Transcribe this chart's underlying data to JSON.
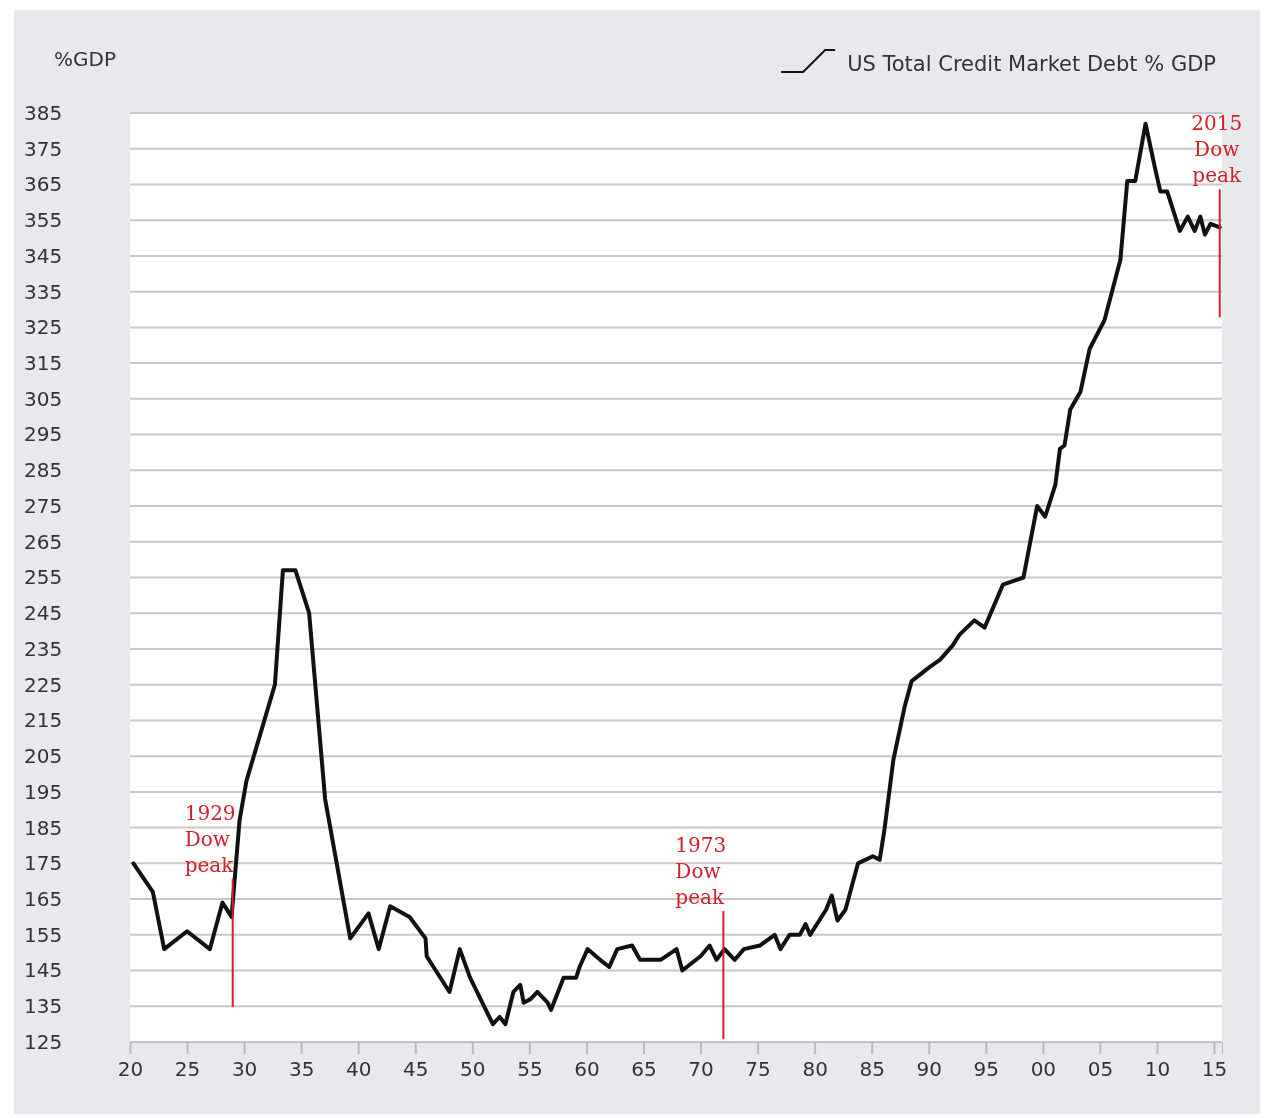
{
  "chart_data": {
    "type": "line",
    "ylabel": "%GDP",
    "legend": "top right",
    "grid": "y",
    "line_style": "solid",
    "marker": "none",
    "xlim": [
      1920,
      2015.7
    ],
    "ylim": [
      125,
      385
    ],
    "xticks": [
      {
        "value": 1920,
        "label": "20"
      },
      {
        "value": 1925,
        "label": "25"
      },
      {
        "value": 1930,
        "label": "30"
      },
      {
        "value": 1935,
        "label": "35"
      },
      {
        "value": 1940,
        "label": "40"
      },
      {
        "value": 1945,
        "label": "45"
      },
      {
        "value": 1950,
        "label": "50"
      },
      {
        "value": 1955,
        "label": "55"
      },
      {
        "value": 1960,
        "label": "60"
      },
      {
        "value": 1965,
        "label": "65"
      },
      {
        "value": 1970,
        "label": "70"
      },
      {
        "value": 1975,
        "label": "75"
      },
      {
        "value": 1980,
        "label": "80"
      },
      {
        "value": 1985,
        "label": "85"
      },
      {
        "value": 1990,
        "label": "90"
      },
      {
        "value": 1995,
        "label": "95"
      },
      {
        "value": 2000,
        "label": "00"
      },
      {
        "value": 2005,
        "label": "05"
      },
      {
        "value": 2010,
        "label": "10"
      },
      {
        "value": 2015,
        "label": "15"
      }
    ],
    "yticks": [
      125,
      135,
      145,
      155,
      165,
      175,
      185,
      195,
      205,
      215,
      225,
      235,
      245,
      255,
      265,
      275,
      285,
      295,
      305,
      315,
      325,
      335,
      345,
      355,
      365,
      375,
      385
    ],
    "series": [
      {
        "name": "US Total Credit Market Debt % GDP",
        "color": "#111111",
        "x": [
          1920.3,
          1922,
          1923,
          1925,
          1927,
          1928.1,
          1928.9,
          1929.6,
          1930.2,
          1932.7,
          1933.4,
          1934.5,
          1935.7,
          1937.1,
          1939.3,
          1940.9,
          1941.8,
          1942.8,
          1944.5,
          1945.9,
          1946,
          1948,
          1948.9,
          1949.8,
          1951.8,
          1952.4,
          1952.9,
          1953.6,
          1954.2,
          1954.5,
          1955.1,
          1955.7,
          1956.6,
          1956.9,
          1958,
          1959.1,
          1959.4,
          1960.1,
          1961.2,
          1962,
          1962.7,
          1964,
          1964.7,
          1966.5,
          1967.9,
          1968.4,
          1970,
          1970.8,
          1971.4,
          1972.1,
          1973,
          1973.8,
          1975.2,
          1976.5,
          1977,
          1977.8,
          1978.7,
          1979.2,
          1979.6,
          1981,
          1981.5,
          1982,
          1982.7,
          1983.8,
          1985.1,
          1985.7,
          1986.1,
          1986.9,
          1987.9,
          1988.5,
          1990.1,
          1991,
          1992.1,
          1992.7,
          1994,
          1994.9,
          1996.5,
          1998.3,
          1999.5,
          2000.2,
          2001.1,
          2001.5,
          2001.9,
          2002.4,
          2003.3,
          2004.1,
          2005.4,
          2006.8,
          2007.4,
          2008.1,
          2009,
          2009.8,
          2010.3,
          2010.9,
          2012,
          2012.7,
          2013.3,
          2013.8,
          2014.2,
          2014.7,
          2015.5
        ],
        "values": [
          175,
          167,
          151,
          156,
          151,
          164,
          160,
          187,
          198,
          225,
          257,
          257,
          245,
          193,
          154,
          161,
          151,
          163,
          160,
          154,
          149,
          139,
          151,
          143,
          130,
          132,
          130,
          139,
          141,
          136,
          137,
          139,
          136,
          134,
          143,
          143,
          146,
          151,
          148,
          146,
          151,
          152,
          148,
          148,
          151,
          145,
          149,
          152,
          148,
          151,
          148,
          151,
          152,
          155,
          151,
          155,
          155,
          158,
          155,
          162,
          166,
          159,
          162,
          175,
          177,
          176,
          184,
          204,
          219,
          226,
          230,
          232,
          236,
          239,
          243,
          241,
          253,
          255,
          275,
          272,
          281,
          291,
          292,
          302,
          307,
          319,
          327,
          344,
          366,
          366,
          382,
          370,
          363,
          363,
          352,
          356,
          352,
          356,
          351,
          354,
          353
        ]
      }
    ],
    "ref_lines": [
      {
        "axis": "x",
        "value": 1929,
        "label": "1929 Dow peak",
        "color": "#d0202a"
      },
      {
        "axis": "x",
        "value": 1972,
        "label": "1973 Dow peak",
        "color": "#d0202a"
      },
      {
        "axis": "x",
        "value": 2015.5,
        "label": "2015 Dow peak",
        "color": "#d0202a"
      }
    ]
  }
}
